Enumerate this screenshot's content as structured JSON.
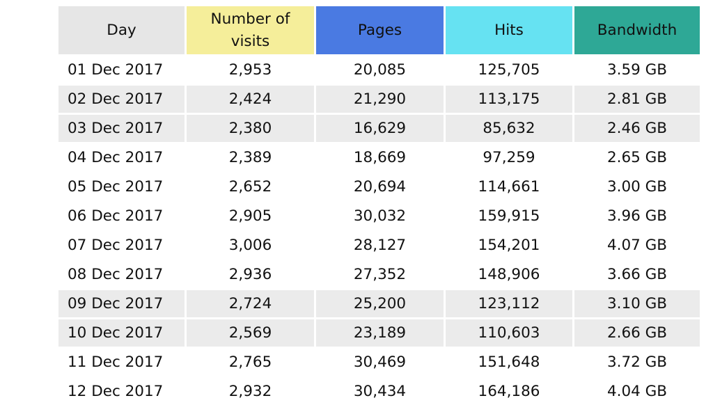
{
  "table": {
    "headers": {
      "day": "Day",
      "visits_line1": "Number of",
      "visits_line2": "visits",
      "pages": "Pages",
      "hits": "Hits",
      "bandwidth": "Bandwidth"
    },
    "header_colors": {
      "day": "#e6e6e6",
      "visits": "#f5ee9a",
      "pages": "#4a7ae2",
      "hits": "#66e2f2",
      "bandwidth": "#2ea896"
    },
    "row_shade_color": "#ebebeb",
    "rows": [
      {
        "day": "01 Dec 2017",
        "visits": "2,953",
        "pages": "20,085",
        "hits": "125,705",
        "bandwidth": "3.59 GB",
        "shaded": false
      },
      {
        "day": "02 Dec 2017",
        "visits": "2,424",
        "pages": "21,290",
        "hits": "113,175",
        "bandwidth": "2.81 GB",
        "shaded": true
      },
      {
        "day": "03 Dec 2017",
        "visits": "2,380",
        "pages": "16,629",
        "hits": "85,632",
        "bandwidth": "2.46 GB",
        "shaded": true
      },
      {
        "day": "04 Dec 2017",
        "visits": "2,389",
        "pages": "18,669",
        "hits": "97,259",
        "bandwidth": "2.65 GB",
        "shaded": false
      },
      {
        "day": "05 Dec 2017",
        "visits": "2,652",
        "pages": "20,694",
        "hits": "114,661",
        "bandwidth": "3.00 GB",
        "shaded": false
      },
      {
        "day": "06 Dec 2017",
        "visits": "2,905",
        "pages": "30,032",
        "hits": "159,915",
        "bandwidth": "3.96 GB",
        "shaded": false
      },
      {
        "day": "07 Dec 2017",
        "visits": "3,006",
        "pages": "28,127",
        "hits": "154,201",
        "bandwidth": "4.07 GB",
        "shaded": false
      },
      {
        "day": "08 Dec 2017",
        "visits": "2,936",
        "pages": "27,352",
        "hits": "148,906",
        "bandwidth": "3.66 GB",
        "shaded": false
      },
      {
        "day": "09 Dec 2017",
        "visits": "2,724",
        "pages": "25,200",
        "hits": "123,112",
        "bandwidth": "3.10 GB",
        "shaded": true
      },
      {
        "day": "10 Dec 2017",
        "visits": "2,569",
        "pages": "23,189",
        "hits": "110,603",
        "bandwidth": "2.66 GB",
        "shaded": true
      },
      {
        "day": "11 Dec 2017",
        "visits": "2,765",
        "pages": "30,469",
        "hits": "151,648",
        "bandwidth": "3.72 GB",
        "shaded": false
      },
      {
        "day": "12 Dec 2017",
        "visits": "2,932",
        "pages": "30,434",
        "hits": "164,186",
        "bandwidth": "4.04 GB",
        "shaded": false
      }
    ]
  }
}
